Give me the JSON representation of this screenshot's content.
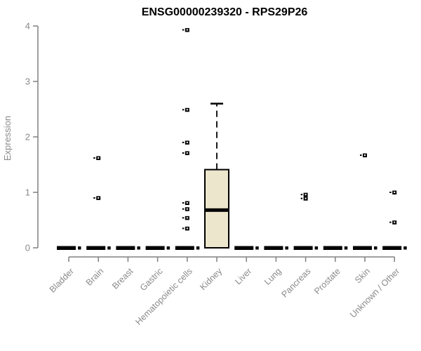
{
  "chart_data": {
    "type": "boxplot",
    "title": "ENSG00000239320 - RPS29P26",
    "ylabel": "Expression",
    "xlabel": "",
    "ylim": [
      0,
      4
    ],
    "yticks": [
      0,
      1,
      2,
      3,
      4
    ],
    "grid": false,
    "legend": "none",
    "categories": [
      "Bladder",
      "Brain",
      "Breast",
      "Gastric",
      "Hematopoietic cells",
      "Kidney",
      "Liver",
      "Lung",
      "Pancreas",
      "Prostate",
      "Skin",
      "Unknown / Other"
    ],
    "boxes": [
      {
        "category": "Bladder",
        "q1": 0,
        "median": 0,
        "q3": 0,
        "whisker_low": 0,
        "whisker_high": 0,
        "outliers": []
      },
      {
        "category": "Brain",
        "q1": 0,
        "median": 0,
        "q3": 0,
        "whisker_low": 0,
        "whisker_high": 0,
        "outliers": [
          1.62,
          0.9
        ]
      },
      {
        "category": "Breast",
        "q1": 0,
        "median": 0,
        "q3": 0,
        "whisker_low": 0,
        "whisker_high": 0,
        "outliers": []
      },
      {
        "category": "Gastric",
        "q1": 0,
        "median": 0,
        "q3": 0,
        "whisker_low": 0,
        "whisker_high": 0,
        "outliers": []
      },
      {
        "category": "Hematopoietic cells",
        "q1": 0,
        "median": 0,
        "q3": 0,
        "whisker_low": 0,
        "whisker_high": 0,
        "outliers": [
          3.93,
          2.49,
          1.9,
          1.71,
          0.81,
          0.7,
          0.54,
          0.35
        ]
      },
      {
        "category": "Kidney",
        "q1": 0,
        "median": 0.68,
        "q3": 1.41,
        "whisker_low": 0,
        "whisker_high": 2.6,
        "outliers": []
      },
      {
        "category": "Liver",
        "q1": 0,
        "median": 0,
        "q3": 0,
        "whisker_low": 0,
        "whisker_high": 0,
        "outliers": []
      },
      {
        "category": "Lung",
        "q1": 0,
        "median": 0,
        "q3": 0,
        "whisker_low": 0,
        "whisker_high": 0,
        "outliers": []
      },
      {
        "category": "Pancreas",
        "q1": 0,
        "median": 0,
        "q3": 0,
        "whisker_low": 0,
        "whisker_high": 0,
        "outliers": [
          0.96,
          0.89
        ]
      },
      {
        "category": "Prostate",
        "q1": 0,
        "median": 0,
        "q3": 0,
        "whisker_low": 0,
        "whisker_high": 0,
        "outliers": []
      },
      {
        "category": "Skin",
        "q1": 0,
        "median": 0,
        "q3": 0,
        "whisker_low": 0,
        "whisker_high": 0,
        "outliers": [
          1.67
        ]
      },
      {
        "category": "Unknown / Other",
        "q1": 0,
        "median": 0,
        "q3": 0,
        "whisker_low": 0,
        "whisker_high": 0,
        "outliers": [
          1.0,
          0.46
        ]
      }
    ],
    "colors": {
      "box_fill": "#ECE7CC",
      "box_border": "#000000",
      "median": "#000000",
      "whisker": "#000000",
      "outlier": "#000000",
      "axis_line": "#808080",
      "text_gray": "#8a8a8a",
      "title": "#000000",
      "background": "#ffffff"
    }
  }
}
